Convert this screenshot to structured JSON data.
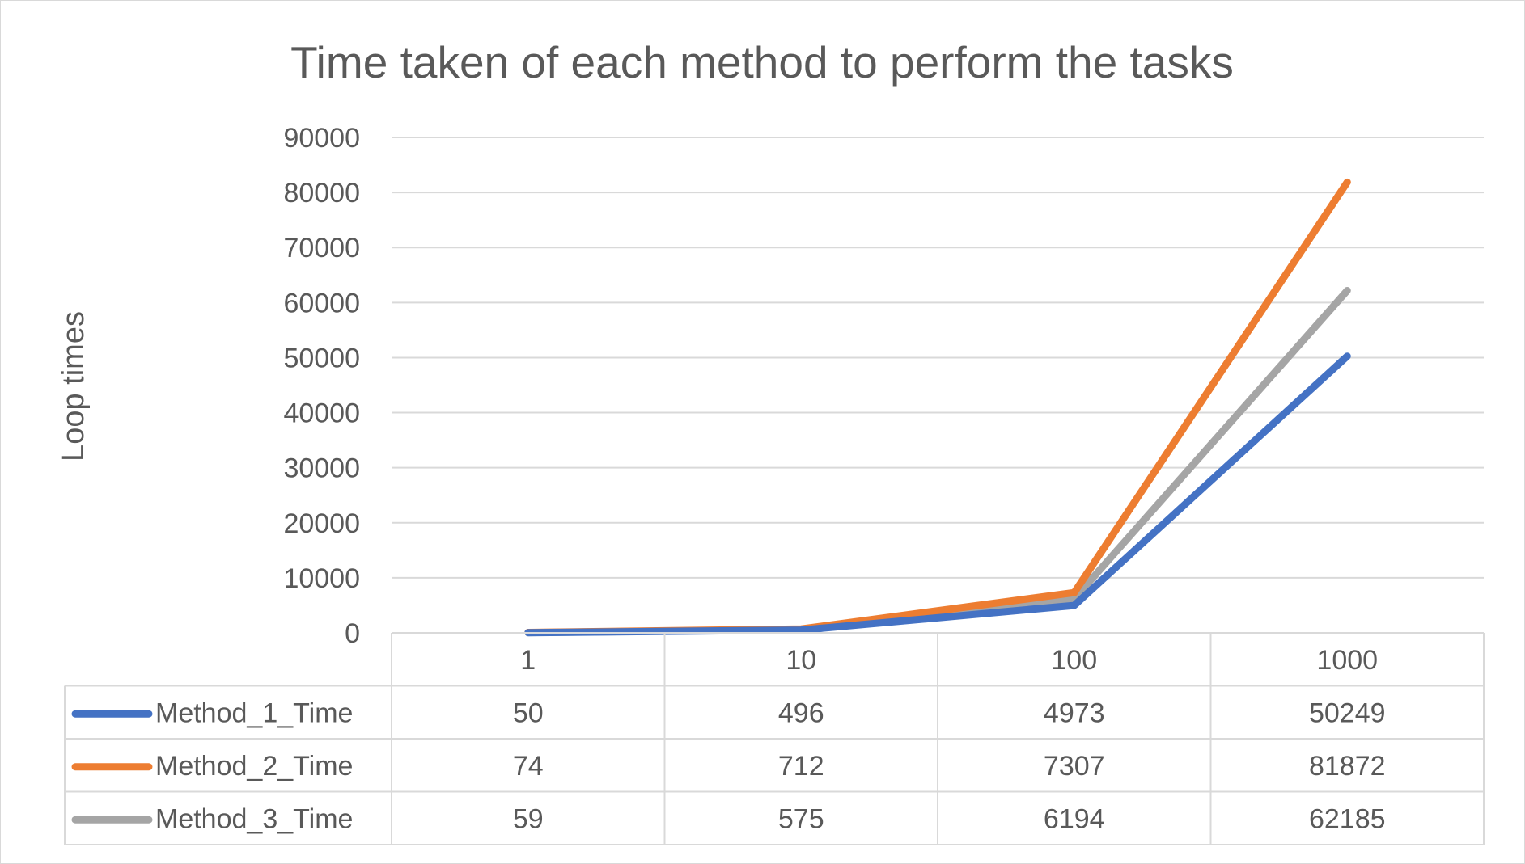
{
  "chart_data": {
    "type": "line",
    "title": "Time taken of each method to perform the tasks",
    "xlabel": "",
    "ylabel": "Loop times",
    "categories": [
      "1",
      "10",
      "100",
      "1000"
    ],
    "ylim": [
      0,
      90000
    ],
    "yticks": [
      0,
      10000,
      20000,
      30000,
      40000,
      50000,
      60000,
      70000,
      80000,
      90000
    ],
    "grid": true,
    "legend": "data-table",
    "series": [
      {
        "name": "Method_1_Time",
        "color": "#4472c4",
        "values": [
          50,
          496,
          4973,
          50249
        ]
      },
      {
        "name": "Method_2_Time",
        "color": "#ed7d31",
        "values": [
          74,
          712,
          7307,
          81872
        ]
      },
      {
        "name": "Method_3_Time",
        "color": "#a5a5a5",
        "values": [
          59,
          575,
          6194,
          62185
        ]
      }
    ]
  }
}
